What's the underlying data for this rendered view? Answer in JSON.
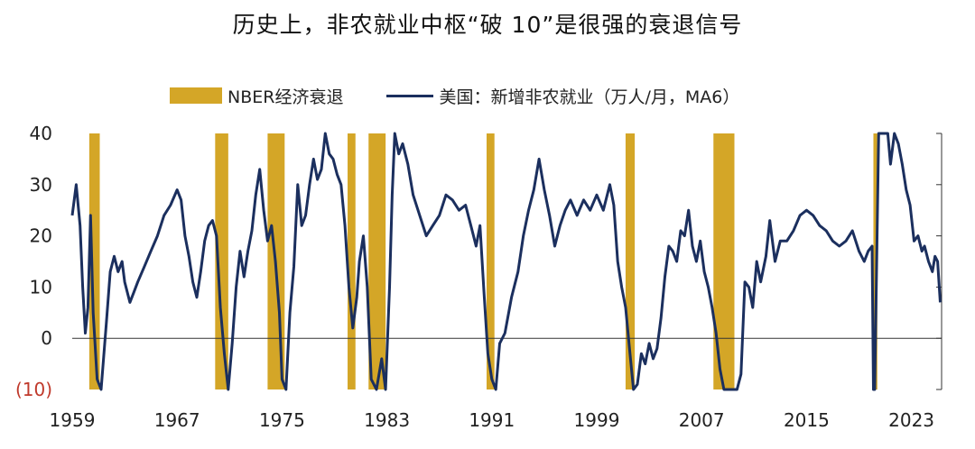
{
  "chart_data": {
    "type": "line",
    "title": "历史上，非农就业中枢“破 10”是很强的衰退信号",
    "legend": {
      "recession": "NBER经济衰退",
      "series": "美国：新增非农就业（万人/月，MA6）"
    },
    "colors": {
      "recession": "#D4A627",
      "line": "#1B2F5E",
      "negative_label": "#C0392B"
    },
    "x_ticks": [
      "1959",
      "1967",
      "1975",
      "1983",
      "1991",
      "1999",
      "2007",
      "2015",
      "2023"
    ],
    "y_ticks": [
      {
        "value": 40,
        "label": "40"
      },
      {
        "value": 30,
        "label": "30"
      },
      {
        "value": 20,
        "label": "20"
      },
      {
        "value": 10,
        "label": "10"
      },
      {
        "value": 0,
        "label": "0"
      },
      {
        "value": -10,
        "label": "(10)"
      }
    ],
    "xlim": [
      1959,
      2025.3
    ],
    "ylim": [
      -10,
      40
    ],
    "recessions": [
      [
        1960.3,
        1961.1
      ],
      [
        1969.9,
        1970.9
      ],
      [
        1973.9,
        1975.2
      ],
      [
        1980.0,
        1980.6
      ],
      [
        1981.6,
        1982.9
      ],
      [
        1990.6,
        1991.2
      ],
      [
        2001.2,
        2001.9
      ],
      [
        2007.9,
        2009.5
      ],
      [
        2020.1,
        2020.4
      ]
    ],
    "series": [
      {
        "name": "美国：新增非农就业（万人/月，MA6）",
        "points": [
          [
            1959.0,
            24
          ],
          [
            1959.3,
            30
          ],
          [
            1959.6,
            22
          ],
          [
            1959.8,
            10
          ],
          [
            1960.0,
            1
          ],
          [
            1960.2,
            6
          ],
          [
            1960.4,
            24
          ],
          [
            1960.6,
            5
          ],
          [
            1960.9,
            -8
          ],
          [
            1961.2,
            -10
          ],
          [
            1961.6,
            3
          ],
          [
            1961.9,
            13
          ],
          [
            1962.2,
            16
          ],
          [
            1962.5,
            13
          ],
          [
            1962.8,
            15
          ],
          [
            1963.0,
            11
          ],
          [
            1963.4,
            7
          ],
          [
            1963.7,
            9
          ],
          [
            1964.0,
            11
          ],
          [
            1964.5,
            14
          ],
          [
            1965.0,
            17
          ],
          [
            1965.5,
            20
          ],
          [
            1966.0,
            24
          ],
          [
            1966.5,
            26
          ],
          [
            1967.0,
            29
          ],
          [
            1967.3,
            27
          ],
          [
            1967.6,
            20
          ],
          [
            1967.9,
            16
          ],
          [
            1968.2,
            11
          ],
          [
            1968.5,
            8
          ],
          [
            1968.8,
            13
          ],
          [
            1969.1,
            19
          ],
          [
            1969.4,
            22
          ],
          [
            1969.7,
            23
          ],
          [
            1970.0,
            20
          ],
          [
            1970.3,
            6
          ],
          [
            1970.6,
            -3
          ],
          [
            1970.9,
            -10
          ],
          [
            1971.2,
            -1
          ],
          [
            1971.5,
            10
          ],
          [
            1971.8,
            17
          ],
          [
            1972.1,
            12
          ],
          [
            1972.4,
            17
          ],
          [
            1972.7,
            21
          ],
          [
            1973.0,
            28
          ],
          [
            1973.3,
            33
          ],
          [
            1973.6,
            25
          ],
          [
            1973.9,
            19
          ],
          [
            1974.2,
            22
          ],
          [
            1974.5,
            15
          ],
          [
            1974.8,
            5
          ],
          [
            1975.0,
            -8
          ],
          [
            1975.3,
            -10
          ],
          [
            1975.6,
            5
          ],
          [
            1975.9,
            14
          ],
          [
            1976.2,
            30
          ],
          [
            1976.5,
            22
          ],
          [
            1976.8,
            24
          ],
          [
            1977.1,
            30
          ],
          [
            1977.4,
            35
          ],
          [
            1977.7,
            31
          ],
          [
            1978.0,
            33
          ],
          [
            1978.3,
            40
          ],
          [
            1978.6,
            36
          ],
          [
            1978.9,
            35
          ],
          [
            1979.2,
            32
          ],
          [
            1979.5,
            30
          ],
          [
            1979.8,
            22
          ],
          [
            1980.1,
            10
          ],
          [
            1980.4,
            2
          ],
          [
            1980.7,
            8
          ],
          [
            1980.9,
            15
          ],
          [
            1981.2,
            20
          ],
          [
            1981.5,
            10
          ],
          [
            1981.8,
            -8
          ],
          [
            1982.2,
            -10
          ],
          [
            1982.6,
            -4
          ],
          [
            1982.9,
            -10
          ],
          [
            1983.2,
            10
          ],
          [
            1983.4,
            28
          ],
          [
            1983.6,
            40
          ],
          [
            1983.9,
            36
          ],
          [
            1984.2,
            38
          ],
          [
            1984.6,
            34
          ],
          [
            1985.0,
            28
          ],
          [
            1985.5,
            24
          ],
          [
            1986.0,
            20
          ],
          [
            1986.5,
            22
          ],
          [
            1987.0,
            24
          ],
          [
            1987.5,
            28
          ],
          [
            1988.0,
            27
          ],
          [
            1988.5,
            25
          ],
          [
            1989.0,
            26
          ],
          [
            1989.4,
            22
          ],
          [
            1989.8,
            18
          ],
          [
            1990.1,
            22
          ],
          [
            1990.4,
            9
          ],
          [
            1990.7,
            -3
          ],
          [
            1991.0,
            -8
          ],
          [
            1991.3,
            -10
          ],
          [
            1991.6,
            -1
          ],
          [
            1992.0,
            1
          ],
          [
            1992.5,
            8
          ],
          [
            1993.0,
            13
          ],
          [
            1993.4,
            20
          ],
          [
            1993.8,
            25
          ],
          [
            1994.2,
            29
          ],
          [
            1994.6,
            35
          ],
          [
            1995.0,
            29
          ],
          [
            1995.4,
            24
          ],
          [
            1995.8,
            18
          ],
          [
            1996.2,
            22
          ],
          [
            1996.6,
            25
          ],
          [
            1997.0,
            27
          ],
          [
            1997.5,
            24
          ],
          [
            1998.0,
            27
          ],
          [
            1998.5,
            25
          ],
          [
            1999.0,
            28
          ],
          [
            1999.5,
            25
          ],
          [
            2000.0,
            30
          ],
          [
            2000.3,
            26
          ],
          [
            2000.6,
            15
          ],
          [
            2000.9,
            10
          ],
          [
            2001.2,
            6
          ],
          [
            2001.5,
            -2
          ],
          [
            2001.8,
            -10
          ],
          [
            2002.1,
            -9
          ],
          [
            2002.4,
            -3
          ],
          [
            2002.7,
            -5
          ],
          [
            2003.0,
            -1
          ],
          [
            2003.3,
            -4
          ],
          [
            2003.6,
            -2
          ],
          [
            2003.9,
            4
          ],
          [
            2004.2,
            12
          ],
          [
            2004.5,
            18
          ],
          [
            2004.8,
            17
          ],
          [
            2005.1,
            15
          ],
          [
            2005.4,
            21
          ],
          [
            2005.7,
            20
          ],
          [
            2006.0,
            25
          ],
          [
            2006.3,
            18
          ],
          [
            2006.6,
            15
          ],
          [
            2006.9,
            19
          ],
          [
            2007.2,
            13
          ],
          [
            2007.5,
            10
          ],
          [
            2007.8,
            6
          ],
          [
            2008.1,
            1
          ],
          [
            2008.4,
            -6
          ],
          [
            2008.7,
            -10
          ],
          [
            2009.0,
            -10
          ],
          [
            2009.4,
            -10
          ],
          [
            2009.7,
            -10
          ],
          [
            2010.0,
            -7
          ],
          [
            2010.3,
            11
          ],
          [
            2010.6,
            10
          ],
          [
            2010.9,
            6
          ],
          [
            2011.2,
            15
          ],
          [
            2011.5,
            11
          ],
          [
            2011.9,
            16
          ],
          [
            2012.2,
            23
          ],
          [
            2012.6,
            15
          ],
          [
            2013.0,
            19
          ],
          [
            2013.5,
            19
          ],
          [
            2014.0,
            21
          ],
          [
            2014.5,
            24
          ],
          [
            2015.0,
            25
          ],
          [
            2015.5,
            24
          ],
          [
            2016.0,
            22
          ],
          [
            2016.5,
            21
          ],
          [
            2017.0,
            19
          ],
          [
            2017.5,
            18
          ],
          [
            2018.0,
            19
          ],
          [
            2018.5,
            21
          ],
          [
            2019.0,
            17
          ],
          [
            2019.4,
            15
          ],
          [
            2019.7,
            17
          ],
          [
            2020.0,
            18
          ],
          [
            2020.1,
            -10
          ],
          [
            2020.2,
            -10
          ],
          [
            2020.5,
            40
          ],
          [
            2020.8,
            40
          ],
          [
            2021.2,
            40
          ],
          [
            2021.4,
            34
          ],
          [
            2021.7,
            40
          ],
          [
            2022.0,
            38
          ],
          [
            2022.3,
            34
          ],
          [
            2022.6,
            29
          ],
          [
            2022.9,
            26
          ],
          [
            2023.2,
            19
          ],
          [
            2023.5,
            20
          ],
          [
            2023.8,
            17
          ],
          [
            2024.0,
            18
          ],
          [
            2024.3,
            15
          ],
          [
            2024.6,
            13
          ],
          [
            2024.8,
            16
          ],
          [
            2025.0,
            15
          ],
          [
            2025.2,
            7
          ]
        ]
      }
    ]
  }
}
